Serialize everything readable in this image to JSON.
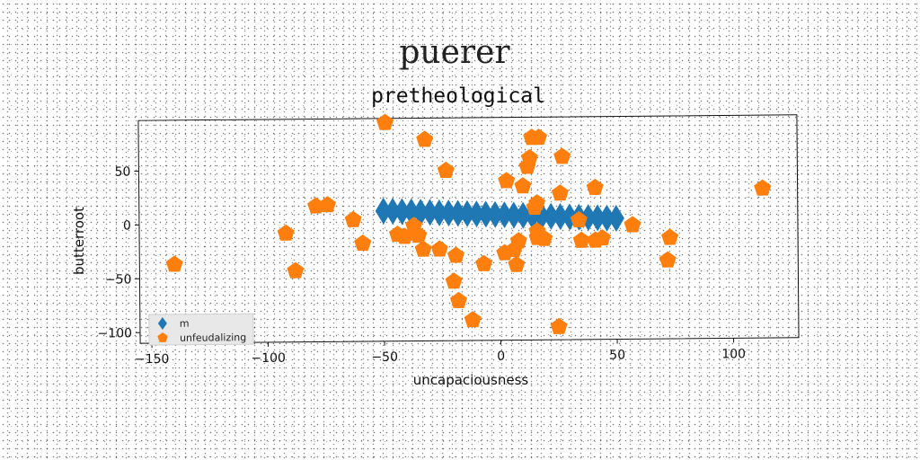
{
  "suptitle": "puerer",
  "chart_data": {
    "type": "scatter",
    "title": "pretheological",
    "xlabel": "uncapaciousness",
    "ylabel": "butterroot",
    "xlim": [
      -155,
      128
    ],
    "ylim": [
      -110,
      97
    ],
    "xticks": [
      -150,
      -100,
      -50,
      0,
      50,
      100
    ],
    "yticks": [
      -100,
      -50,
      0,
      50
    ],
    "xtick_labels": [
      "−150",
      "−100",
      "−50",
      "0",
      "50",
      "100"
    ],
    "ytick_labels": [
      "−100",
      "−50",
      "0",
      "50"
    ],
    "grid": false,
    "legend_position": "lower-left",
    "series": [
      {
        "name": "m",
        "marker": "diamond",
        "color": "#1f77b4",
        "x": [
          -50,
          -46,
          -42,
          -38,
          -34,
          -30,
          -26,
          -22,
          -18,
          -14,
          -10,
          -6,
          -2,
          2,
          6,
          10,
          14,
          18,
          22,
          26,
          30,
          34,
          38,
          42,
          46,
          50
        ],
        "y": [
          11,
          10.7,
          10.3,
          10,
          9.6,
          9.3,
          8.9,
          8.6,
          8.2,
          7.9,
          7.5,
          7.2,
          6.8,
          6.5,
          6.1,
          5.8,
          5.4,
          5.1,
          4.7,
          4.4,
          4,
          3.7,
          3.3,
          3,
          2.6,
          2.3
        ]
      },
      {
        "name": "unfeudalizing",
        "marker": "pentagon",
        "color": "#ff7f0e",
        "x": [
          -140,
          -92,
          -88,
          -79,
          -74,
          -63,
          -59,
          -49,
          -44,
          -41,
          -37,
          -36,
          -35,
          -33,
          -32,
          -26,
          -23,
          -20,
          -19,
          -18,
          -12,
          -7,
          2,
          3,
          6,
          7,
          8,
          10,
          12,
          13,
          14,
          15,
          16,
          16,
          16,
          17,
          19,
          25,
          26,
          27,
          34,
          35,
          41,
          41,
          44,
          57,
          72,
          73,
          113
        ],
        "y": [
          -37,
          -9,
          -44,
          16,
          17,
          3,
          -19,
          93,
          -11,
          -13,
          -3,
          -10,
          -12,
          -25,
          77,
          -25,
          48,
          -55,
          -31,
          -73,
          -91,
          -39,
          -29,
          38,
          -26,
          -40,
          -18,
          33,
          51,
          59,
          78,
          13,
          -9,
          -15,
          17,
          78,
          -16,
          -98,
          26,
          60,
          1,
          -18,
          31,
          -18,
          -16,
          -4,
          -37,
          -16,
          29
        ]
      }
    ]
  }
}
